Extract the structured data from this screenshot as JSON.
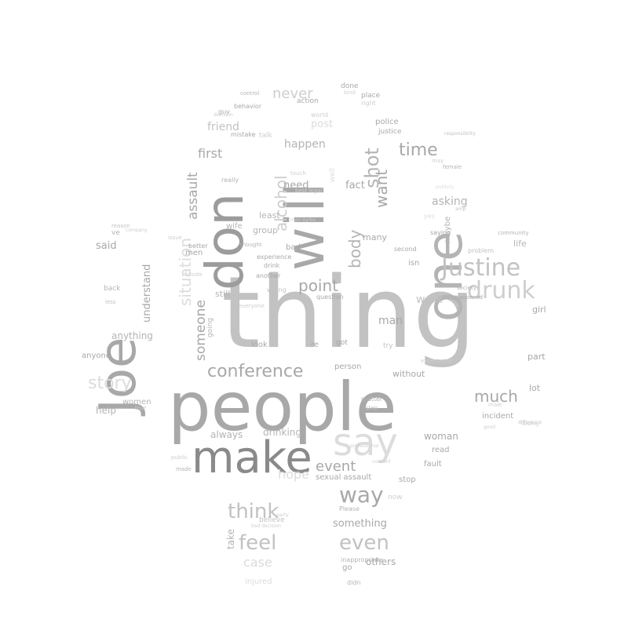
{
  "palette": {
    "background": "#ffffff",
    "tones": [
      "#8a8a8a",
      "#9c9c9c",
      "#a8a8a8",
      "#b4b4b4",
      "#c2c2c2",
      "#cecece",
      "#dcdcdc",
      "#e8e8e8"
    ]
  },
  "words": [
    {
      "text": "thing",
      "tone": 4
    },
    {
      "text": "people",
      "tone": 2
    },
    {
      "text": "Joe",
      "tone": 2
    },
    {
      "text": "one",
      "tone": 3
    },
    {
      "text": "will",
      "tone": 2
    },
    {
      "text": "don",
      "tone": 1
    },
    {
      "text": "make",
      "tone": 0
    },
    {
      "text": "say",
      "tone": 6
    },
    {
      "text": "Justine",
      "tone": 4
    },
    {
      "text": "drunk",
      "tone": 5
    },
    {
      "text": "body",
      "tone": 3
    },
    {
      "text": "shot",
      "tone": 3
    },
    {
      "text": "conference",
      "tone": 2
    },
    {
      "text": "think",
      "tone": 4
    },
    {
      "text": "feel",
      "tone": 4
    },
    {
      "text": "even",
      "tone": 4
    },
    {
      "text": "way",
      "tone": 2
    },
    {
      "text": "story",
      "tone": 6
    },
    {
      "text": "alcohol",
      "tone": 5
    },
    {
      "text": "situation",
      "tone": 6
    },
    {
      "text": "someone",
      "tone": 2
    },
    {
      "text": "assault",
      "tone": 2
    },
    {
      "text": "point",
      "tone": 2
    },
    {
      "text": "time",
      "tone": 2
    },
    {
      "text": "want",
      "tone": 2
    },
    {
      "text": "never",
      "tone": 5
    },
    {
      "text": "much",
      "tone": 2
    },
    {
      "text": "event",
      "tone": 2
    },
    {
      "text": "first",
      "tone": 2
    },
    {
      "text": "happen",
      "tone": 3
    },
    {
      "text": "friend",
      "tone": 4
    },
    {
      "text": "need",
      "tone": 2
    },
    {
      "text": "fact",
      "tone": 2
    },
    {
      "text": "asking",
      "tone": 3
    },
    {
      "text": "work",
      "tone": 4
    },
    {
      "text": "man",
      "tone": 2
    },
    {
      "text": "understand",
      "tone": 2
    },
    {
      "text": "said",
      "tone": 2
    },
    {
      "text": "anything",
      "tone": 3
    },
    {
      "text": "help",
      "tone": 3
    },
    {
      "text": "always",
      "tone": 3
    },
    {
      "text": "drinking",
      "tone": 3
    },
    {
      "text": "woman",
      "tone": 2
    },
    {
      "text": "something",
      "tone": 2
    },
    {
      "text": "take",
      "tone": 3
    },
    {
      "text": "others",
      "tone": 2
    },
    {
      "text": "case",
      "tone": 6
    },
    {
      "text": "women",
      "tone": 3
    },
    {
      "text": "anyone",
      "tone": 2
    },
    {
      "text": "lot",
      "tone": 2
    },
    {
      "text": "part",
      "tone": 2
    },
    {
      "text": "incident",
      "tone": 2
    },
    {
      "text": "girl",
      "tone": 2
    },
    {
      "text": "life",
      "tone": 3
    },
    {
      "text": "maybe",
      "tone": 3
    },
    {
      "text": "isn",
      "tone": 2
    },
    {
      "text": "many",
      "tone": 2
    },
    {
      "text": "group",
      "tone": 3
    },
    {
      "text": "least",
      "tone": 3
    },
    {
      "text": "men",
      "tone": 2
    },
    {
      "text": "still",
      "tone": 3
    },
    {
      "text": "look",
      "tone": 2
    },
    {
      "text": "re",
      "tone": 2
    },
    {
      "text": "person",
      "tone": 2
    },
    {
      "text": "without",
      "tone": 2
    },
    {
      "text": "read",
      "tone": 2
    },
    {
      "text": "fault",
      "tone": 2
    },
    {
      "text": "stop",
      "tone": 2
    },
    {
      "text": "sexual assault",
      "tone": 2
    },
    {
      "text": "bad",
      "tone": 2
    },
    {
      "text": "police",
      "tone": 2
    },
    {
      "text": "justice",
      "tone": 2
    },
    {
      "text": "done",
      "tone": 2
    },
    {
      "text": "place",
      "tone": 2
    },
    {
      "text": "action",
      "tone": 2
    },
    {
      "text": "behavior",
      "tone": 2
    },
    {
      "text": "guy",
      "tone": 2
    },
    {
      "text": "mistake",
      "tone": 2
    },
    {
      "text": "really",
      "tone": 3
    },
    {
      "text": "wife",
      "tone": 3
    },
    {
      "text": "better",
      "tone": 2
    },
    {
      "text": "saying",
      "tone": 2
    },
    {
      "text": "second",
      "tone": 2
    },
    {
      "text": "community",
      "tone": 3
    },
    {
      "text": "female",
      "tone": 3
    },
    {
      "text": "problem",
      "tone": 4
    },
    {
      "text": "society",
      "tone": 3
    },
    {
      "text": "question",
      "tone": 2
    },
    {
      "text": "happened",
      "tone": 2
    },
    {
      "text": "experience",
      "tone": 2
    },
    {
      "text": "drink",
      "tone": 2
    },
    {
      "text": "another",
      "tone": 2
    },
    {
      "text": "thought",
      "tone": 3
    },
    {
      "text": "control",
      "tone": 3
    },
    {
      "text": "right",
      "tone": 5
    },
    {
      "text": "believe",
      "tone": 4
    },
    {
      "text": "go",
      "tone": 2
    },
    {
      "text": "got",
      "tone": 2
    },
    {
      "text": "try",
      "tone": 4
    },
    {
      "text": "going",
      "tone": 3
    },
    {
      "text": "didn",
      "tone": 3
    },
    {
      "text": "inappropriate",
      "tone": 3
    },
    {
      "text": "Please",
      "tone": 3
    },
    {
      "text": "matter",
      "tone": 3
    },
    {
      "text": "step",
      "tone": 4
    },
    {
      "text": "now",
      "tone": 5
    },
    {
      "text": "back",
      "tone": 3
    },
    {
      "text": "less",
      "tone": 4
    },
    {
      "text": "reason",
      "tone": 4
    },
    {
      "text": "ve",
      "tone": 3
    },
    {
      "text": "made",
      "tone": 3
    },
    {
      "text": "difference",
      "tone": 4
    },
    {
      "text": "hope",
      "tone": 6
    },
    {
      "text": "post",
      "tone": 6
    },
    {
      "text": "kind",
      "tone": 5
    },
    {
      "text": "world",
      "tone": 5
    },
    {
      "text": "amp",
      "tone": 4
    },
    {
      "text": "may",
      "tone": 5
    },
    {
      "text": "publicly",
      "tone": 6
    },
    {
      "text": "professional",
      "tone": 5
    },
    {
      "text": "responsibility",
      "tone": 4
    },
    {
      "text": "talk",
      "tone": 5
    },
    {
      "text": "touch",
      "tone": 5
    },
    {
      "text": "best legal",
      "tone": 5
    },
    {
      "text": "mail darby",
      "tone": 5
    },
    {
      "text": "company",
      "tone": 5
    },
    {
      "text": "issue",
      "tone": 5
    },
    {
      "text": "outside",
      "tone": 5
    },
    {
      "text": "everyone",
      "tone": 5
    },
    {
      "text": "true",
      "tone": 5
    },
    {
      "text": "public",
      "tone": 5
    },
    {
      "text": "party",
      "tone": 5
    },
    {
      "text": "bad decision",
      "tone": 5
    },
    {
      "text": "dealing",
      "tone": 5
    },
    {
      "text": "male",
      "tone": 5
    },
    {
      "text": "good",
      "tone": 5
    },
    {
      "text": "expectation",
      "tone": 5
    },
    {
      "text": "wrong",
      "tone": 4
    },
    {
      "text": "injured",
      "tone": 6
    },
    {
      "text": "well",
      "tone": 6
    },
    {
      "text": "yes",
      "tone": 6
    },
    {
      "text": "decision",
      "tone": 5
    },
    {
      "text": "consent",
      "tone": 5
    }
  ]
}
